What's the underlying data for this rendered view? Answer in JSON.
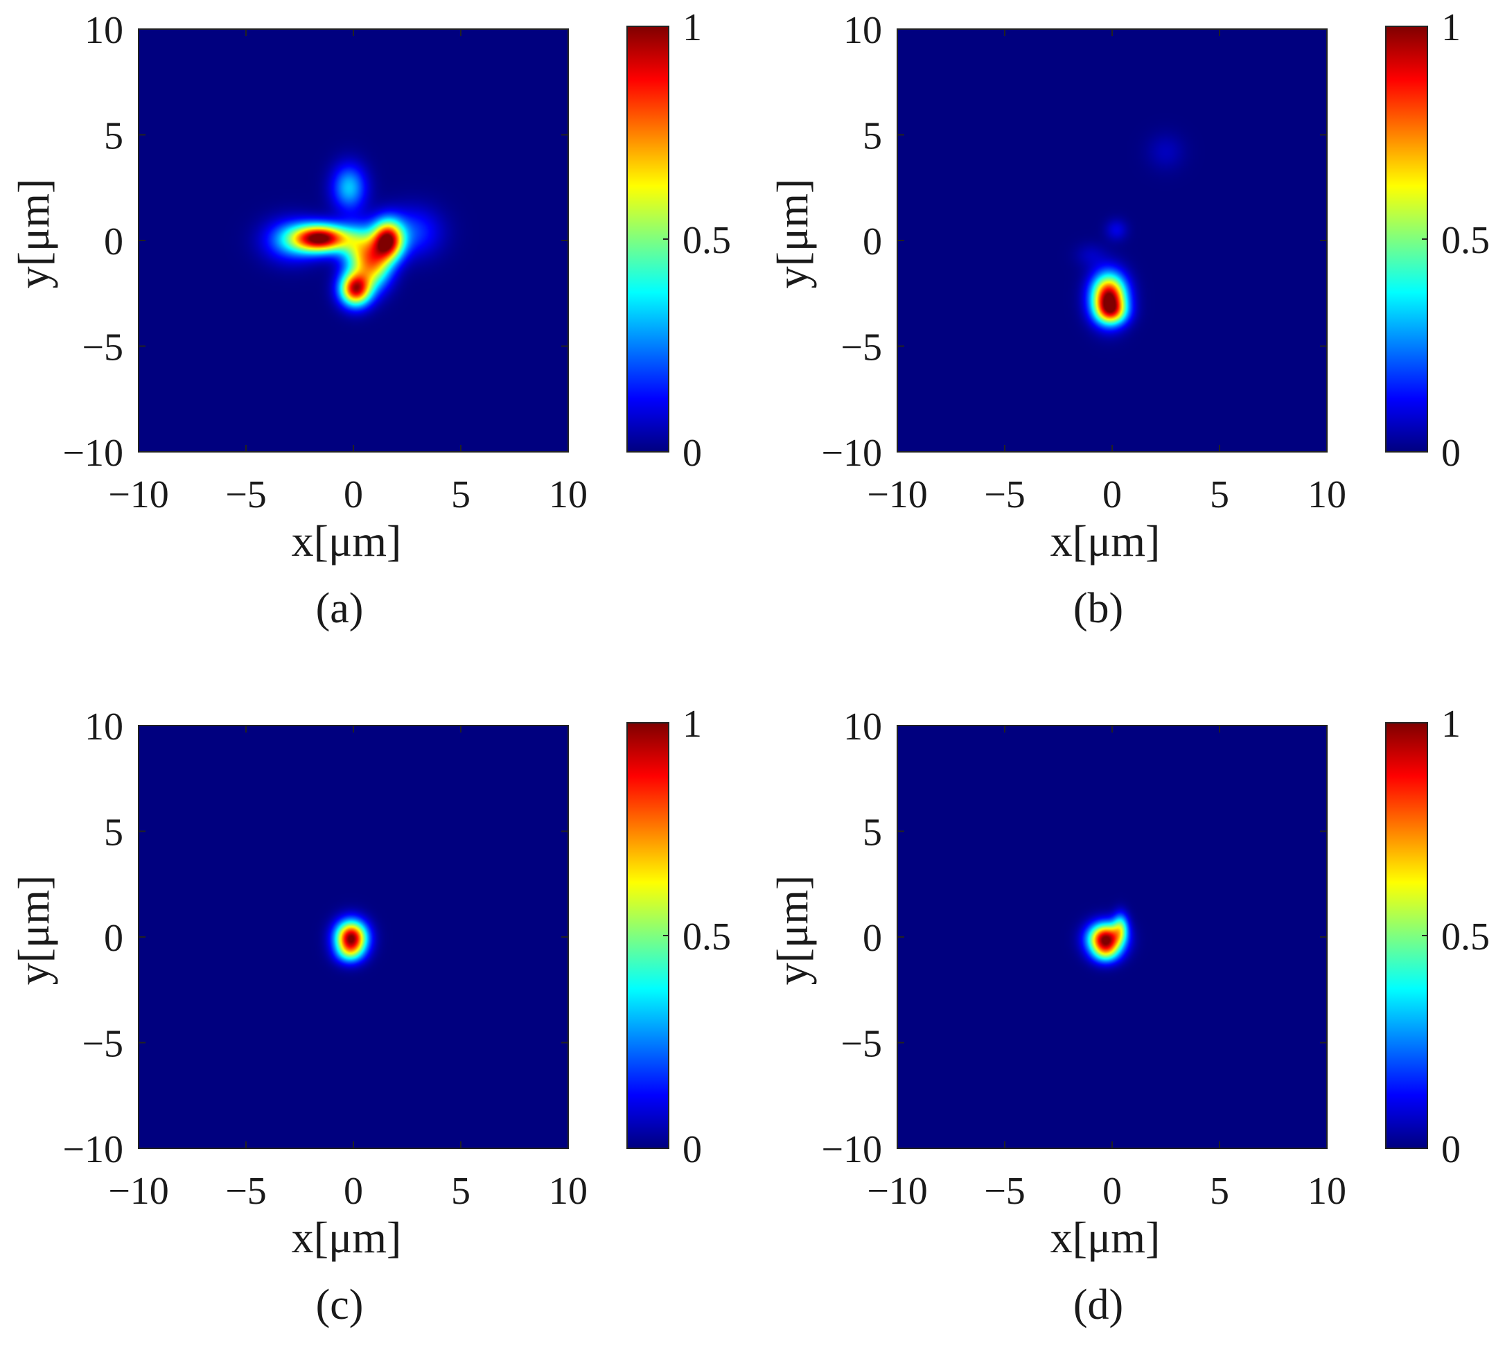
{
  "figure": {
    "background": "#ffffff"
  },
  "colormap": {
    "name": "jet",
    "stops": [
      "#00007f",
      "#0000ff",
      "#007fff",
      "#00ffff",
      "#7fff7f",
      "#ffff00",
      "#ff7f00",
      "#ff0000",
      "#7f0000"
    ],
    "range": [
      0,
      1
    ]
  },
  "chart_data": [
    {
      "type": "heatmap",
      "caption": "(a)",
      "xlabel": "x[μm]",
      "ylabel": "y[μm]",
      "xlim": [
        -10,
        10
      ],
      "ylim": [
        -10,
        10
      ],
      "xticks": [
        -10,
        -5,
        0,
        5,
        10
      ],
      "yticks": [
        -10,
        -5,
        0,
        5,
        10
      ],
      "xtick_labels": [
        "−10",
        "−5",
        "0",
        "5",
        "10"
      ],
      "ytick_labels": [
        "−10",
        "−5",
        "0",
        "5",
        "10"
      ],
      "colorbar": {
        "ticks": [
          0,
          0.5,
          1
        ],
        "labels": [
          "0",
          "0.5",
          "1"
        ]
      },
      "blobs": [
        {
          "x": -1.5,
          "y": 0.1,
          "sx": 0.9,
          "sy": 0.45,
          "amp": 1.0
        },
        {
          "x": 1.6,
          "y": 0.0,
          "sx": 0.5,
          "sy": 0.65,
          "amp": 0.93
        },
        {
          "x": 0.1,
          "y": -2.3,
          "sx": 0.5,
          "sy": 0.55,
          "amp": 0.9
        },
        {
          "x": 0.3,
          "y": -0.5,
          "sx": 0.6,
          "sy": 0.8,
          "amp": 0.45
        },
        {
          "x": 1.0,
          "y": -1.2,
          "sx": 0.55,
          "sy": 0.75,
          "amp": 0.5
        },
        {
          "x": -0.2,
          "y": 2.5,
          "sx": 0.55,
          "sy": 0.75,
          "amp": 0.32
        },
        {
          "x": 2.8,
          "y": 0.4,
          "sx": 0.9,
          "sy": 0.8,
          "amp": 0.18
        },
        {
          "x": -2.9,
          "y": 0.0,
          "sx": 0.9,
          "sy": 0.7,
          "amp": 0.25
        }
      ]
    },
    {
      "type": "heatmap",
      "caption": "(b)",
      "xlabel": "x[μm]",
      "ylabel": "y[μm]",
      "xlim": [
        -10,
        10
      ],
      "ylim": [
        -10,
        10
      ],
      "xticks": [
        -10,
        -5,
        0,
        5,
        10
      ],
      "yticks": [
        -10,
        -5,
        0,
        5,
        10
      ],
      "xtick_labels": [
        "−10",
        "−5",
        "0",
        "5",
        "10"
      ],
      "ytick_labels": [
        "−10",
        "−5",
        "0",
        "5",
        "10"
      ],
      "colorbar": {
        "ticks": [
          0,
          0.5,
          1
        ],
        "labels": [
          "0",
          "0.5",
          "1"
        ]
      },
      "blobs": [
        {
          "x": -0.15,
          "y": -2.7,
          "sx": 0.55,
          "sy": 0.75,
          "amp": 1.0
        },
        {
          "x": 0.0,
          "y": -3.4,
          "sx": 0.5,
          "sy": 0.4,
          "amp": 0.35
        },
        {
          "x": 0.2,
          "y": 0.5,
          "sx": 0.35,
          "sy": 0.35,
          "amp": 0.1
        },
        {
          "x": 2.5,
          "y": 4.2,
          "sx": 0.6,
          "sy": 0.6,
          "amp": 0.06
        },
        {
          "x": -1.0,
          "y": -0.7,
          "sx": 0.5,
          "sy": 0.4,
          "amp": 0.06
        }
      ]
    },
    {
      "type": "heatmap",
      "caption": "(c)",
      "xlabel": "x[μm]",
      "ylabel": "y[μm]",
      "xlim": [
        -10,
        10
      ],
      "ylim": [
        -10,
        10
      ],
      "xticks": [
        -10,
        -5,
        0,
        5,
        10
      ],
      "yticks": [
        -10,
        -5,
        0,
        5,
        10
      ],
      "xtick_labels": [
        "−10",
        "−5",
        "0",
        "5",
        "10"
      ],
      "ytick_labels": [
        "−10",
        "−5",
        "0",
        "5",
        "10"
      ],
      "colorbar": {
        "ticks": [
          0,
          0.5,
          1
        ],
        "labels": [
          "0",
          "0.5",
          "1"
        ]
      },
      "blobs": [
        {
          "x": -0.1,
          "y": -0.05,
          "sx": 0.5,
          "sy": 0.55,
          "amp": 1.0
        },
        {
          "x": -0.2,
          "y": -0.8,
          "sx": 0.45,
          "sy": 0.35,
          "amp": 0.2
        }
      ]
    },
    {
      "type": "heatmap",
      "caption": "(d)",
      "xlabel": "x[μm]",
      "ylabel": "y[μm]",
      "xlim": [
        -10,
        10
      ],
      "ylim": [
        -10,
        10
      ],
      "xticks": [
        -10,
        -5,
        0,
        5,
        10
      ],
      "yticks": [
        -10,
        -5,
        0,
        5,
        10
      ],
      "xtick_labels": [
        "−10",
        "−5",
        "0",
        "5",
        "10"
      ],
      "ytick_labels": [
        "−10",
        "−5",
        "0",
        "5",
        "10"
      ],
      "colorbar": {
        "ticks": [
          0,
          0.5,
          1
        ],
        "labels": [
          "0",
          "0.5",
          "1"
        ]
      },
      "blobs": [
        {
          "x": -0.3,
          "y": -0.1,
          "sx": 0.55,
          "sy": 0.5,
          "amp": 1.0
        },
        {
          "x": 0.4,
          "y": 0.5,
          "sx": 0.25,
          "sy": 0.45,
          "amp": 0.35
        },
        {
          "x": -0.3,
          "y": -0.8,
          "sx": 0.45,
          "sy": 0.35,
          "amp": 0.25
        }
      ]
    }
  ]
}
